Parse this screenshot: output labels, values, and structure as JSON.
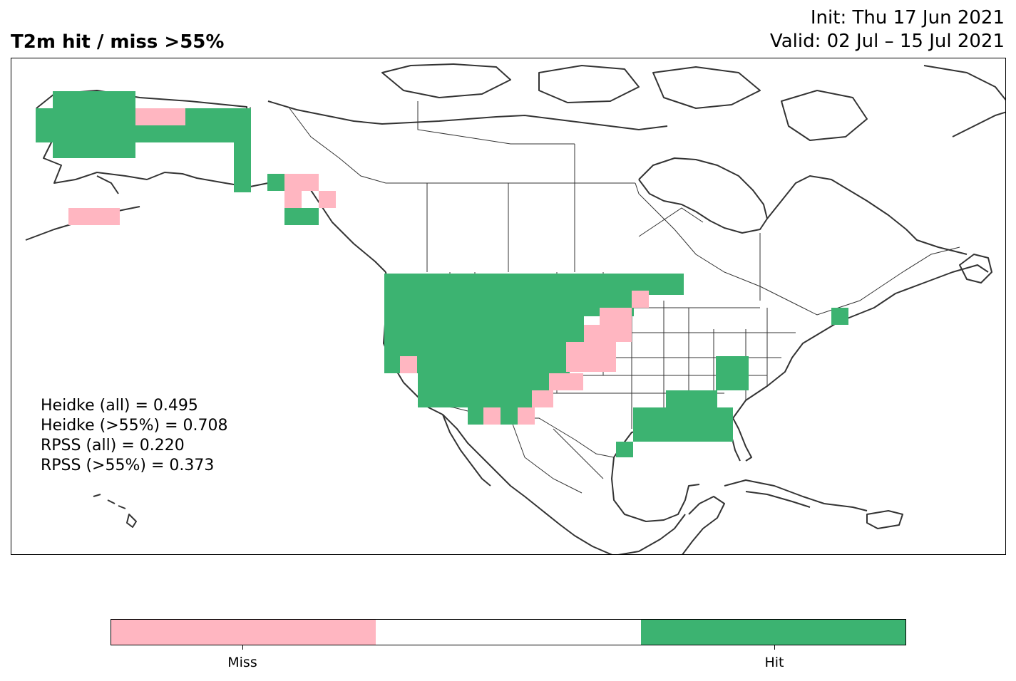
{
  "title": "T2m hit / miss  >55%",
  "init": "Init: Thu 17 Jun 2021",
  "valid": "Valid: 02 Jul – 15 Jul 2021",
  "scores": [
    "Heidke (all) = 0.495",
    "Heidke (>55%) = 0.708",
    "RPSS (all) = 0.220",
    "RPSS (>55%) = 0.373"
  ],
  "colorbar": {
    "labels": {
      "miss": "Miss",
      "hit": "Hit"
    },
    "colors": {
      "miss": "#ffb6c1",
      "neutral": "#ffffff",
      "hit": "#3cb371"
    }
  },
  "map": {
    "region": "North America",
    "categories": [
      "miss",
      "neutral",
      "hit"
    ]
  }
}
